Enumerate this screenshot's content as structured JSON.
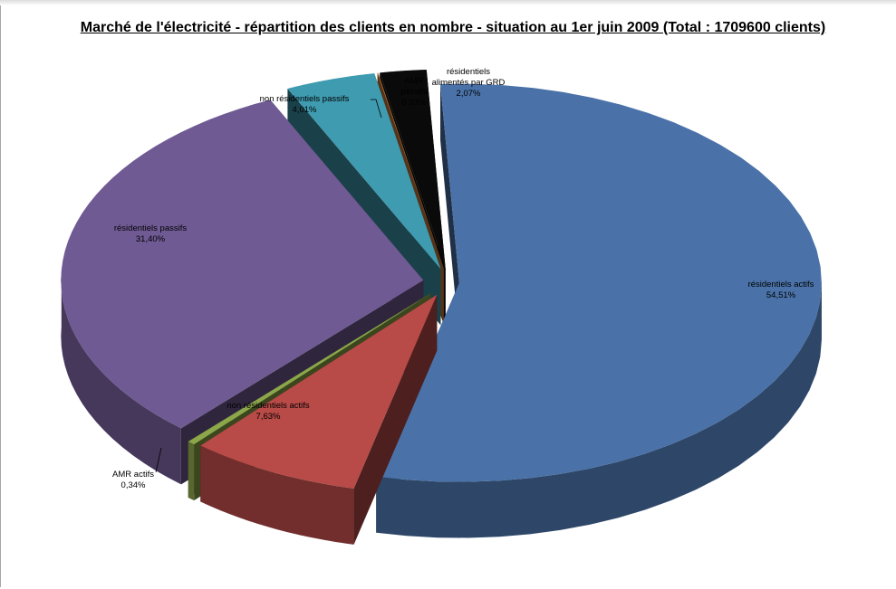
{
  "chart_data": {
    "type": "pie",
    "title": "Marché de l'électricité - répartition des clients en nombre - situation au 1er juin 2009 (Total : 1709600 clients)",
    "slices": [
      {
        "name": "résidentiels actifs",
        "value": 54.51,
        "label": "54,51%",
        "color": "#4a72a8"
      },
      {
        "name": "non résidentiels actifs",
        "value": 7.63,
        "label": "7,63%",
        "color": "#b84a47"
      },
      {
        "name": "AMR actifs",
        "value": 0.34,
        "label": "0,34%",
        "color": "#8ca64a"
      },
      {
        "name": "résidentiels passifs",
        "value": 31.4,
        "label": "31,40%",
        "color": "#6f5a93"
      },
      {
        "name": "non résidentiels passifs",
        "value": 4.01,
        "label": "4,01%",
        "color": "#3f9bb0"
      },
      {
        "name": "AMR passifs",
        "value": 0.03,
        "label": "0,03%",
        "color": "#c87a3a"
      },
      {
        "name": "résidentiels alimentés par GRD",
        "value": 2.07,
        "label": "2,07%",
        "color": "#0a0a0a"
      }
    ],
    "legend": "none",
    "style": "3d-exploded"
  }
}
